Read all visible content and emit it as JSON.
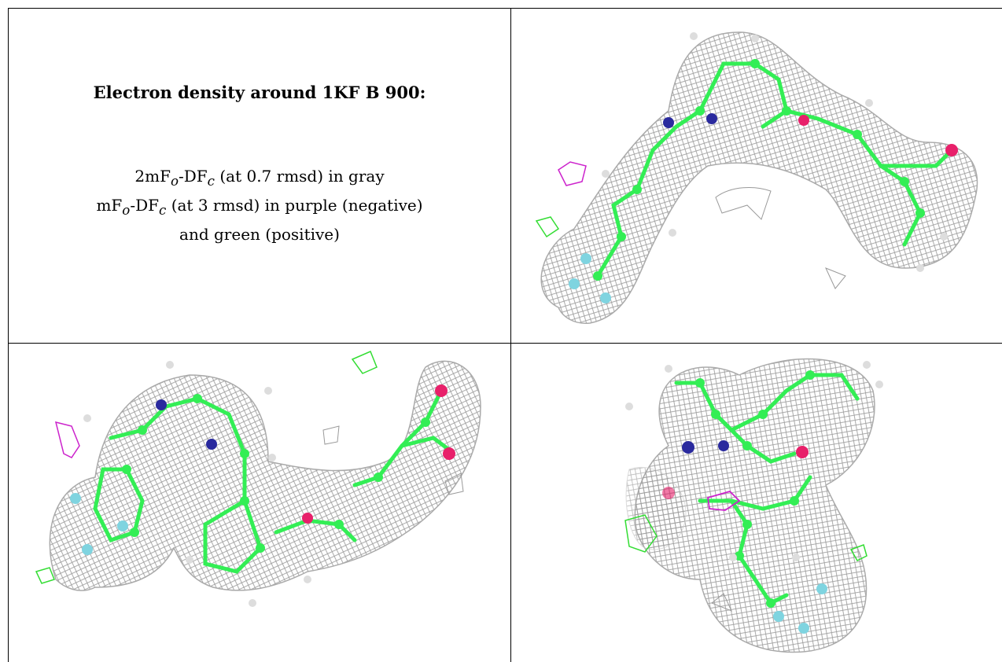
{
  "title": "Electron density around 1KF B 900:",
  "legend": {
    "line1_a": "2mF",
    "line1_sub1": "o",
    "line1_b": "-DF",
    "line1_sub2": "c",
    "line1_c": " (at 0.7 rmsd) in gray",
    "line2_a": "mF",
    "line2_sub1": "o",
    "line2_b": "-DF",
    "line2_sub2": "c",
    "line2_c": " (at 3 rmsd) in purple (negative)",
    "line3": "and green (positive)"
  },
  "colors": {
    "mesh": "#9a9a9a",
    "carbon": "#33ee55",
    "hydrogen": "#dddddd",
    "nitrogen": "#2a2a9e",
    "oxygen": "#e8206a",
    "fluorine": "#7fd4e0",
    "negative": "#cc22cc",
    "positive": "#33dd33"
  }
}
